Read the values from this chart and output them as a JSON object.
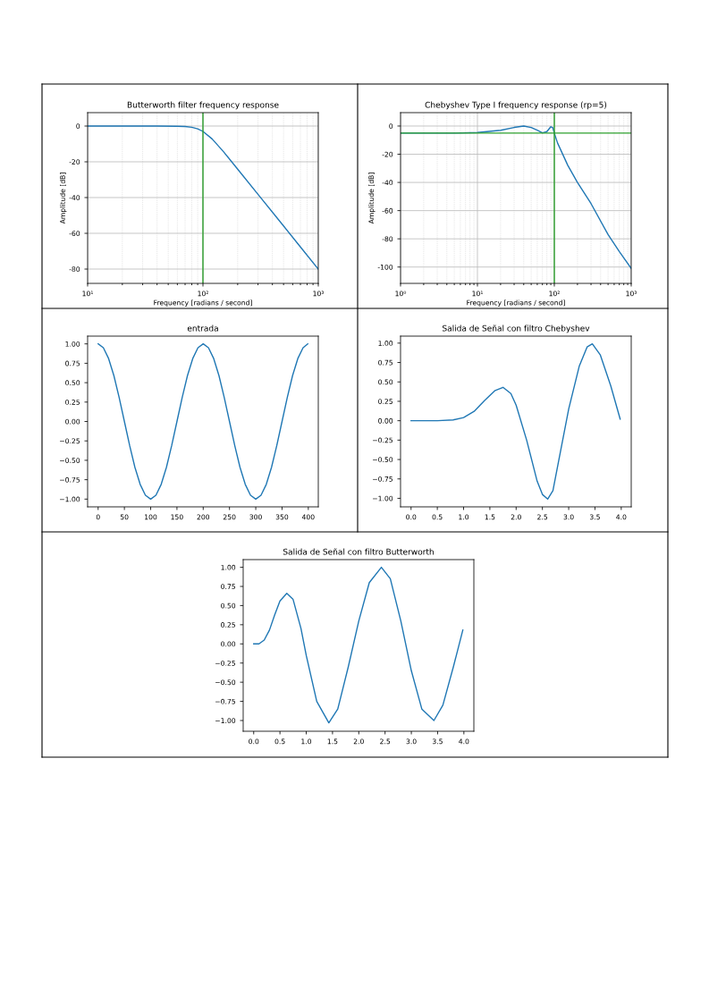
{
  "chart_data": [
    {
      "type": "line",
      "title": "Butterworth filter frequency response",
      "xlabel": "Frequency [radians / second]",
      "ylabel": "Amplitude [dB]",
      "log": "x",
      "grid": true,
      "xlim": [
        10,
        1000
      ],
      "ylim": [
        -88,
        7.5
      ],
      "xticks": [
        {
          "value": 10,
          "label": "10¹"
        },
        {
          "value": 100,
          "label": "10²"
        },
        {
          "value": 1000,
          "label": "10³"
        }
      ],
      "yticks": [
        -80,
        -60,
        -40,
        -20,
        0
      ],
      "series": [
        {
          "color": "#1f77b4",
          "x": [
            10,
            20,
            40,
            60,
            70,
            80,
            90,
            100,
            120,
            150,
            200,
            300,
            500,
            700,
            1000
          ],
          "values": [
            0,
            0,
            0,
            -0.1,
            -0.24,
            -0.67,
            -1.55,
            -3,
            -7.2,
            -14.2,
            -24.1,
            -38.2,
            -55.9,
            -67.6,
            -80
          ]
        }
      ],
      "ref_lines": [
        {
          "axis": "x",
          "value": 100,
          "color": "#2ca02c"
        }
      ]
    },
    {
      "type": "line",
      "title": "Chebyshev Type I frequency response (rp=5)",
      "xlabel": "Frequency [radians / second]",
      "ylabel": "Amplitude [dB]",
      "log": "x",
      "grid": true,
      "xlim": [
        1,
        1000
      ],
      "ylim": [
        -111.6,
        9.5
      ],
      "xticks": [
        {
          "value": 1,
          "label": "10⁰"
        },
        {
          "value": 10,
          "label": "10¹"
        },
        {
          "value": 100,
          "label": "10²"
        },
        {
          "value": 1000,
          "label": "10³"
        }
      ],
      "yticks": [
        -100,
        -80,
        -60,
        -40,
        -20,
        0
      ],
      "series": [
        {
          "color": "#1f77b4",
          "x": [
            1,
            5,
            10,
            20,
            30,
            40,
            50,
            60,
            70,
            80,
            90,
            95,
            100,
            110,
            150,
            200,
            300,
            500,
            700,
            1000
          ],
          "values": [
            -5,
            -5,
            -4.6,
            -3,
            -1,
            0,
            -1,
            -3,
            -4.8,
            -4,
            -0.5,
            -1,
            -5,
            -12,
            -28,
            -40,
            -55,
            -77,
            -89,
            -101
          ]
        }
      ],
      "ref_lines": [
        {
          "axis": "x",
          "value": 100,
          "color": "#2ca02c"
        },
        {
          "axis": "y",
          "value": -5,
          "color": "#2ca02c"
        }
      ]
    },
    {
      "type": "line",
      "title": "entrada",
      "grid": false,
      "xlim": [
        -20,
        419
      ],
      "ylim": [
        -1.1,
        1.1
      ],
      "xticks": [
        0,
        50,
        100,
        150,
        200,
        250,
        300,
        350,
        400
      ],
      "yticks": [
        {
          "value": -1,
          "label": "−1.00"
        },
        {
          "value": -0.75,
          "label": "−0.75"
        },
        {
          "value": -0.5,
          "label": "−0.50"
        },
        {
          "value": -0.25,
          "label": "−0.25"
        },
        {
          "value": 0,
          "label": "0.00"
        },
        {
          "value": 0.25,
          "label": "0.25"
        },
        {
          "value": 0.5,
          "label": "0.50"
        },
        {
          "value": 0.75,
          "label": "0.75"
        },
        {
          "value": 1,
          "label": "1.00"
        }
      ],
      "series": [
        {
          "color": "#1f77b4",
          "x": [
            0,
            10,
            20,
            30,
            40,
            50,
            60,
            70,
            80,
            90,
            100,
            110,
            120,
            130,
            140,
            150,
            160,
            170,
            180,
            190,
            200,
            210,
            220,
            230,
            240,
            250,
            260,
            270,
            280,
            290,
            300,
            310,
            320,
            330,
            340,
            350,
            360,
            370,
            380,
            390,
            399
          ],
          "values": [
            1,
            0.95,
            0.81,
            0.59,
            0.31,
            0,
            -0.31,
            -0.59,
            -0.81,
            -0.95,
            -1,
            -0.95,
            -0.81,
            -0.59,
            -0.31,
            0,
            0.31,
            0.59,
            0.81,
            0.95,
            1,
            0.95,
            0.81,
            0.59,
            0.31,
            0,
            -0.31,
            -0.59,
            -0.81,
            -0.95,
            -1,
            -0.95,
            -0.81,
            -0.59,
            -0.31,
            0,
            0.31,
            0.59,
            0.81,
            0.95,
            1
          ]
        }
      ]
    },
    {
      "type": "line",
      "title": "Salida de Señal con filtro Chebyshev",
      "grid": false,
      "xlim": [
        -0.2,
        4.19
      ],
      "ylim": [
        -1.11,
        1.09
      ],
      "xticks": [
        {
          "value": 0,
          "label": "0.0"
        },
        0.5,
        {
          "value": 1,
          "label": "1.0"
        },
        1.5,
        {
          "value": 2,
          "label": "2.0"
        },
        2.5,
        {
          "value": 3,
          "label": "3.0"
        },
        3.5,
        {
          "value": 4,
          "label": "4.0"
        }
      ],
      "yticks": [
        {
          "value": -1,
          "label": "−1.00"
        },
        {
          "value": -0.75,
          "label": "−0.75"
        },
        {
          "value": -0.5,
          "label": "−0.50"
        },
        {
          "value": -0.25,
          "label": "−0.25"
        },
        {
          "value": 0,
          "label": "0.00"
        },
        {
          "value": 0.25,
          "label": "0.25"
        },
        {
          "value": 0.5,
          "label": "0.50"
        },
        {
          "value": 0.75,
          "label": "0.75"
        },
        {
          "value": 1,
          "label": "1.00"
        }
      ],
      "series": [
        {
          "color": "#1f77b4",
          "x": [
            0,
            0.5,
            0.8,
            1.0,
            1.2,
            1.4,
            1.6,
            1.75,
            1.9,
            2.0,
            2.2,
            2.4,
            2.5,
            2.6,
            2.7,
            2.8,
            3.0,
            3.2,
            3.35,
            3.45,
            3.6,
            3.8,
            3.98
          ],
          "values": [
            0,
            0,
            0.01,
            0.04,
            0.12,
            0.26,
            0.39,
            0.43,
            0.35,
            0.2,
            -0.25,
            -0.78,
            -0.95,
            -1.01,
            -0.9,
            -0.55,
            0.15,
            0.7,
            0.95,
            0.99,
            0.85,
            0.45,
            0.02
          ]
        }
      ]
    },
    {
      "type": "line",
      "title": "Salida de Señal con filtro Butterworth",
      "grid": false,
      "xlim": [
        -0.2,
        4.19
      ],
      "ylim": [
        -1.14,
        1.1
      ],
      "xticks": [
        {
          "value": 0,
          "label": "0.0"
        },
        0.5,
        {
          "value": 1,
          "label": "1.0"
        },
        1.5,
        {
          "value": 2,
          "label": "2.0"
        },
        2.5,
        {
          "value": 3,
          "label": "3.0"
        },
        3.5,
        {
          "value": 4,
          "label": "4.0"
        }
      ],
      "yticks": [
        {
          "value": -1,
          "label": "−1.00"
        },
        {
          "value": -0.75,
          "label": "−0.75"
        },
        {
          "value": -0.5,
          "label": "−0.50"
        },
        {
          "value": -0.25,
          "label": "−0.25"
        },
        {
          "value": 0,
          "label": "0.00"
        },
        {
          "value": 0.25,
          "label": "0.25"
        },
        {
          "value": 0.5,
          "label": "0.50"
        },
        {
          "value": 0.75,
          "label": "0.75"
        },
        {
          "value": 1,
          "label": "1.00"
        }
      ],
      "series": [
        {
          "color": "#1f77b4",
          "x": [
            0,
            0.1,
            0.2,
            0.3,
            0.4,
            0.5,
            0.63,
            0.75,
            0.9,
            1.0,
            1.2,
            1.43,
            1.6,
            1.8,
            2.0,
            2.2,
            2.43,
            2.6,
            2.8,
            3.0,
            3.2,
            3.43,
            3.6,
            3.8,
            3.98
          ],
          "values": [
            0,
            0,
            0.05,
            0.18,
            0.38,
            0.56,
            0.66,
            0.58,
            0.2,
            -0.15,
            -0.75,
            -1.03,
            -0.85,
            -0.3,
            0.3,
            0.8,
            1.0,
            0.85,
            0.3,
            -0.35,
            -0.85,
            -1.0,
            -0.8,
            -0.3,
            0.18
          ]
        }
      ]
    }
  ]
}
